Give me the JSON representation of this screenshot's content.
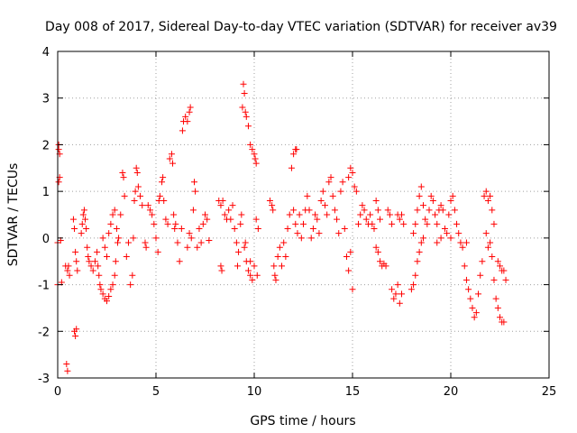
{
  "chart_data": {
    "type": "scatter",
    "title": "Day 008 of 2017, Sidereal Day-to-day VTEC variation (SDTVAR) for receiver av39",
    "xlabel": "GPS time / hours",
    "ylabel": "SDTVAR / TECUs",
    "xlim": [
      0,
      25
    ],
    "ylim": [
      -3,
      4
    ],
    "x_ticks": [
      0,
      5,
      10,
      15,
      20,
      25
    ],
    "y_ticks": [
      -3,
      -2,
      -1,
      0,
      1,
      2,
      3,
      4
    ],
    "x_tick_labels": [
      "0",
      "5",
      "10",
      "15",
      "20",
      "25"
    ],
    "y_tick_labels": [
      "-3",
      "-2",
      "-1",
      "0",
      "1",
      "2",
      "3",
      "4"
    ],
    "grid": true,
    "marker": "+",
    "color": "#ff0000",
    "series": [
      {
        "name": "av39",
        "points": [
          [
            0.0,
            -0.1
          ],
          [
            0.0,
            -1.0
          ],
          [
            0.05,
            1.2
          ],
          [
            0.05,
            1.9
          ],
          [
            0.05,
            2.0
          ],
          [
            0.1,
            1.8
          ],
          [
            0.1,
            1.3
          ],
          [
            0.15,
            -0.05
          ],
          [
            0.2,
            -0.95
          ],
          [
            0.4,
            -0.6
          ],
          [
            0.45,
            -2.7
          ],
          [
            0.5,
            -2.85
          ],
          [
            0.5,
            -0.7
          ],
          [
            0.55,
            -0.6
          ],
          [
            0.6,
            -0.8
          ],
          [
            0.85,
            -2.0
          ],
          [
            0.9,
            -2.1
          ],
          [
            0.95,
            -1.95
          ],
          [
            0.8,
            0.4
          ],
          [
            0.85,
            0.2
          ],
          [
            0.9,
            -0.3
          ],
          [
            0.95,
            -0.5
          ],
          [
            1.0,
            -0.7
          ],
          [
            1.2,
            0.1
          ],
          [
            1.25,
            0.3
          ],
          [
            1.3,
            0.5
          ],
          [
            1.35,
            0.6
          ],
          [
            1.4,
            0.4
          ],
          [
            1.45,
            0.2
          ],
          [
            1.5,
            -0.2
          ],
          [
            1.55,
            -0.4
          ],
          [
            1.6,
            -0.5
          ],
          [
            1.7,
            -0.6
          ],
          [
            1.8,
            -0.7
          ],
          [
            1.9,
            -0.5
          ],
          [
            2.0,
            -0.3
          ],
          [
            2.05,
            -0.6
          ],
          [
            2.1,
            -0.8
          ],
          [
            2.15,
            -1.0
          ],
          [
            2.2,
            -1.1
          ],
          [
            2.3,
            -1.2
          ],
          [
            2.4,
            -1.3
          ],
          [
            2.5,
            -1.35
          ],
          [
            2.6,
            -1.25
          ],
          [
            2.7,
            -1.1
          ],
          [
            2.8,
            -1.0
          ],
          [
            2.9,
            -0.8
          ],
          [
            2.95,
            -0.5
          ],
          [
            2.3,
            0.0
          ],
          [
            2.4,
            -0.2
          ],
          [
            2.5,
            -0.4
          ],
          [
            2.6,
            0.1
          ],
          [
            2.7,
            0.3
          ],
          [
            2.8,
            0.5
          ],
          [
            2.9,
            0.6
          ],
          [
            3.0,
            0.2
          ],
          [
            3.05,
            -0.1
          ],
          [
            3.1,
            0.0
          ],
          [
            3.2,
            0.5
          ],
          [
            3.3,
            1.4
          ],
          [
            3.35,
            1.3
          ],
          [
            3.4,
            0.9
          ],
          [
            3.5,
            -0.4
          ],
          [
            3.6,
            -0.1
          ],
          [
            3.7,
            -1.0
          ],
          [
            3.8,
            -0.8
          ],
          [
            3.85,
            0.0
          ],
          [
            3.9,
            0.8
          ],
          [
            3.95,
            1.0
          ],
          [
            4.0,
            1.5
          ],
          [
            4.05,
            1.4
          ],
          [
            4.1,
            1.1
          ],
          [
            4.2,
            0.9
          ],
          [
            4.3,
            0.7
          ],
          [
            4.45,
            -0.1
          ],
          [
            4.5,
            -0.2
          ],
          [
            4.6,
            0.7
          ],
          [
            4.7,
            0.6
          ],
          [
            4.8,
            0.5
          ],
          [
            4.9,
            0.3
          ],
          [
            5.0,
            0.0
          ],
          [
            5.1,
            -0.3
          ],
          [
            5.15,
            0.8
          ],
          [
            5.2,
            0.9
          ],
          [
            5.3,
            1.2
          ],
          [
            5.35,
            1.3
          ],
          [
            5.4,
            0.8
          ],
          [
            5.5,
            0.4
          ],
          [
            5.6,
            0.3
          ],
          [
            5.7,
            1.7
          ],
          [
            5.8,
            1.8
          ],
          [
            5.85,
            1.6
          ],
          [
            5.9,
            0.5
          ],
          [
            5.95,
            0.2
          ],
          [
            6.0,
            0.3
          ],
          [
            6.1,
            -0.1
          ],
          [
            6.2,
            -0.5
          ],
          [
            6.3,
            0.2
          ],
          [
            6.35,
            2.3
          ],
          [
            6.4,
            2.5
          ],
          [
            6.5,
            2.6
          ],
          [
            6.6,
            2.5
          ],
          [
            6.7,
            2.7
          ],
          [
            6.75,
            2.8
          ],
          [
            6.6,
            -0.2
          ],
          [
            6.7,
            0.1
          ],
          [
            6.8,
            0.0
          ],
          [
            6.9,
            0.6
          ],
          [
            6.95,
            1.2
          ],
          [
            7.0,
            1.0
          ],
          [
            7.1,
            -0.2
          ],
          [
            7.2,
            0.2
          ],
          [
            7.3,
            -0.1
          ],
          [
            7.4,
            0.3
          ],
          [
            7.5,
            0.5
          ],
          [
            7.6,
            0.4
          ],
          [
            7.7,
            -0.05
          ],
          [
            8.2,
            0.8
          ],
          [
            8.3,
            0.7
          ],
          [
            8.4,
            0.8
          ],
          [
            8.5,
            0.5
          ],
          [
            8.6,
            0.4
          ],
          [
            8.7,
            0.6
          ],
          [
            8.8,
            0.4
          ],
          [
            8.9,
            0.7
          ],
          [
            8.3,
            -0.6
          ],
          [
            8.35,
            -0.7
          ],
          [
            9.0,
            0.2
          ],
          [
            9.1,
            -0.1
          ],
          [
            9.15,
            -0.6
          ],
          [
            9.2,
            -0.3
          ],
          [
            9.3,
            0.3
          ],
          [
            9.35,
            0.5
          ],
          [
            9.4,
            2.8
          ],
          [
            9.45,
            3.3
          ],
          [
            9.5,
            3.1
          ],
          [
            9.55,
            2.7
          ],
          [
            9.6,
            2.6
          ],
          [
            9.7,
            2.4
          ],
          [
            9.8,
            2.0
          ],
          [
            9.9,
            1.9
          ],
          [
            10.0,
            1.8
          ],
          [
            10.05,
            1.7
          ],
          [
            10.1,
            1.6
          ],
          [
            9.6,
            -0.5
          ],
          [
            9.7,
            -0.7
          ],
          [
            9.8,
            -0.8
          ],
          [
            9.9,
            -0.9
          ],
          [
            10.0,
            -0.6
          ],
          [
            10.1,
            0.4
          ],
          [
            10.2,
            0.2
          ],
          [
            9.5,
            -0.2
          ],
          [
            9.55,
            -0.1
          ],
          [
            9.8,
            -0.5
          ],
          [
            10.15,
            -0.8
          ],
          [
            10.8,
            0.8
          ],
          [
            10.9,
            0.7
          ],
          [
            10.95,
            0.6
          ],
          [
            11.0,
            -0.6
          ],
          [
            11.05,
            -0.8
          ],
          [
            11.1,
            -0.9
          ],
          [
            11.2,
            -0.4
          ],
          [
            11.3,
            -0.2
          ],
          [
            11.4,
            -0.6
          ],
          [
            11.5,
            -0.1
          ],
          [
            11.6,
            -0.4
          ],
          [
            11.7,
            0.2
          ],
          [
            11.8,
            0.5
          ],
          [
            11.9,
            1.5
          ],
          [
            12.0,
            1.8
          ],
          [
            12.1,
            1.9
          ],
          [
            12.15,
            1.9
          ],
          [
            12.0,
            0.6
          ],
          [
            12.1,
            0.3
          ],
          [
            12.2,
            0.1
          ],
          [
            12.3,
            0.5
          ],
          [
            12.4,
            0.0
          ],
          [
            12.5,
            0.3
          ],
          [
            12.6,
            0.6
          ],
          [
            12.7,
            0.9
          ],
          [
            12.8,
            0.6
          ],
          [
            12.9,
            0.0
          ],
          [
            13.0,
            0.2
          ],
          [
            13.1,
            0.5
          ],
          [
            13.2,
            0.4
          ],
          [
            13.3,
            0.1
          ],
          [
            13.4,
            0.8
          ],
          [
            13.5,
            1.0
          ],
          [
            13.6,
            0.7
          ],
          [
            13.7,
            0.5
          ],
          [
            13.8,
            1.2
          ],
          [
            13.9,
            1.3
          ],
          [
            14.0,
            0.9
          ],
          [
            14.1,
            0.6
          ],
          [
            14.2,
            0.4
          ],
          [
            14.3,
            0.1
          ],
          [
            14.4,
            1.0
          ],
          [
            14.5,
            1.2
          ],
          [
            14.6,
            0.2
          ],
          [
            14.7,
            -0.4
          ],
          [
            14.8,
            -0.7
          ],
          [
            14.9,
            -0.3
          ],
          [
            15.0,
            -1.1
          ],
          [
            14.8,
            1.3
          ],
          [
            14.9,
            1.5
          ],
          [
            15.0,
            1.4
          ],
          [
            15.1,
            1.1
          ],
          [
            15.2,
            1.0
          ],
          [
            15.3,
            0.3
          ],
          [
            15.4,
            0.5
          ],
          [
            15.5,
            0.7
          ],
          [
            15.6,
            0.6
          ],
          [
            15.7,
            0.4
          ],
          [
            15.8,
            0.3
          ],
          [
            15.9,
            0.5
          ],
          [
            16.0,
            0.3
          ],
          [
            16.1,
            0.2
          ],
          [
            16.2,
            -0.2
          ],
          [
            16.3,
            -0.3
          ],
          [
            16.4,
            -0.5
          ],
          [
            16.5,
            -0.6
          ],
          [
            16.6,
            -0.55
          ],
          [
            16.7,
            -0.6
          ],
          [
            16.2,
            0.8
          ],
          [
            16.3,
            0.6
          ],
          [
            16.4,
            0.4
          ],
          [
            16.8,
            0.6
          ],
          [
            16.9,
            0.5
          ],
          [
            17.0,
            0.3
          ],
          [
            17.0,
            -1.1
          ],
          [
            17.1,
            -1.3
          ],
          [
            17.2,
            -1.2
          ],
          [
            17.3,
            -1.0
          ],
          [
            17.4,
            -1.4
          ],
          [
            17.5,
            -1.2
          ],
          [
            17.3,
            0.5
          ],
          [
            17.4,
            0.4
          ],
          [
            17.5,
            0.5
          ],
          [
            17.6,
            0.3
          ],
          [
            18.0,
            -1.1
          ],
          [
            18.1,
            -1.0
          ],
          [
            18.2,
            -0.8
          ],
          [
            18.3,
            -0.5
          ],
          [
            18.4,
            -0.3
          ],
          [
            18.5,
            -0.1
          ],
          [
            18.6,
            0.0
          ],
          [
            18.1,
            0.1
          ],
          [
            18.2,
            0.3
          ],
          [
            18.3,
            0.6
          ],
          [
            18.4,
            0.9
          ],
          [
            18.5,
            1.1
          ],
          [
            18.6,
            0.7
          ],
          [
            18.7,
            0.4
          ],
          [
            18.8,
            0.3
          ],
          [
            18.9,
            0.6
          ],
          [
            19.0,
            0.9
          ],
          [
            19.1,
            0.8
          ],
          [
            19.2,
            0.5
          ],
          [
            19.3,
            0.3
          ],
          [
            19.4,
            0.6
          ],
          [
            19.5,
            0.7
          ],
          [
            19.6,
            0.6
          ],
          [
            19.7,
            0.2
          ],
          [
            19.8,
            0.1
          ],
          [
            19.9,
            0.5
          ],
          [
            20.0,
            0.8
          ],
          [
            20.1,
            0.9
          ],
          [
            20.2,
            0.6
          ],
          [
            20.3,
            0.3
          ],
          [
            20.4,
            0.1
          ],
          [
            19.3,
            -0.1
          ],
          [
            19.5,
            0.0
          ],
          [
            20.0,
            0.0
          ],
          [
            20.5,
            -0.1
          ],
          [
            20.6,
            -0.2
          ],
          [
            20.7,
            -0.6
          ],
          [
            20.8,
            -0.9
          ],
          [
            20.9,
            -1.1
          ],
          [
            20.8,
            -0.1
          ],
          [
            21.0,
            -1.3
          ],
          [
            21.1,
            -1.5
          ],
          [
            21.2,
            -1.7
          ],
          [
            21.3,
            -1.6
          ],
          [
            21.4,
            -1.2
          ],
          [
            21.5,
            -0.8
          ],
          [
            21.6,
            -0.5
          ],
          [
            21.7,
            0.9
          ],
          [
            21.8,
            1.0
          ],
          [
            21.9,
            0.8
          ],
          [
            22.0,
            0.9
          ],
          [
            22.1,
            0.6
          ],
          [
            22.2,
            0.3
          ],
          [
            21.8,
            0.1
          ],
          [
            21.9,
            -0.2
          ],
          [
            22.0,
            -0.1
          ],
          [
            22.1,
            -0.4
          ],
          [
            22.2,
            -0.9
          ],
          [
            22.3,
            -1.3
          ],
          [
            22.4,
            -1.5
          ],
          [
            22.5,
            -1.7
          ],
          [
            22.6,
            -1.8
          ],
          [
            22.7,
            -1.8
          ],
          [
            22.4,
            -0.5
          ],
          [
            22.5,
            -0.6
          ],
          [
            22.6,
            -0.7
          ],
          [
            22.7,
            -0.7
          ],
          [
            22.8,
            -0.9
          ]
        ]
      }
    ]
  }
}
